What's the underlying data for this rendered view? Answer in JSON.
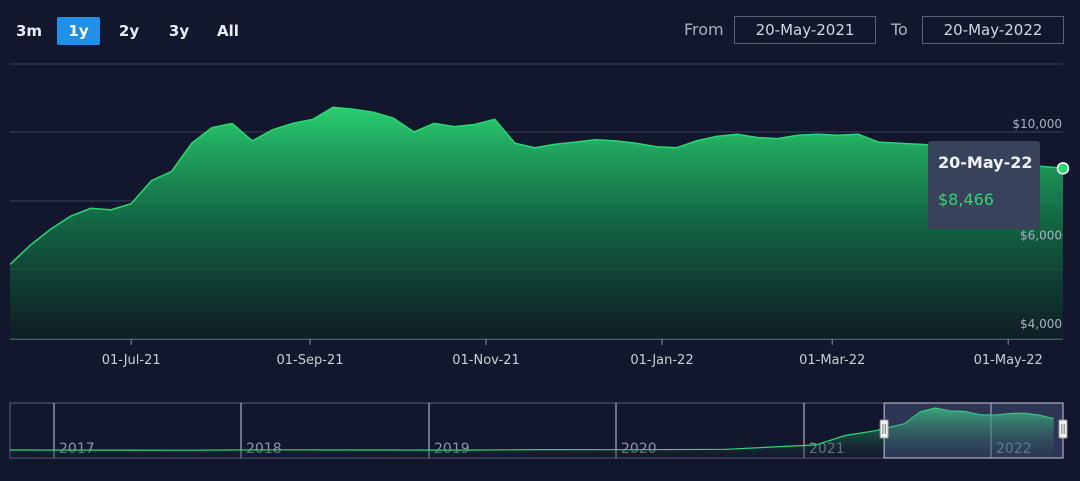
{
  "range_selector": {
    "buttons": [
      "3m",
      "1y",
      "2y",
      "3y",
      "All"
    ],
    "active": "1y"
  },
  "date_range": {
    "from_label": "From",
    "from_value": "20-May-2021",
    "to_label": "To",
    "to_value": "20-May-2022"
  },
  "tooltip": {
    "date": "20-May-22",
    "value": "$8,466"
  },
  "colors": {
    "background": "#13172e",
    "line": "#2bd873",
    "accent": "#1f8fe8"
  },
  "chart_data": [
    {
      "type": "area",
      "title": "",
      "xlabel": "",
      "ylabel": "",
      "x_tick_labels": [
        "01-Jul-21",
        "01-Sep-21",
        "01-Nov-21",
        "01-Jan-22",
        "01-Mar-22",
        "01-May-22"
      ],
      "y_tick_labels": [
        "$4,000",
        "$6,000",
        "$10,000"
      ],
      "ylim": [
        4000,
        12000
      ],
      "grid": true,
      "x": [
        "2021-05-20",
        "2021-05-27",
        "2021-06-03",
        "2021-06-10",
        "2021-06-17",
        "2021-06-24",
        "2021-07-01",
        "2021-07-08",
        "2021-07-15",
        "2021-07-22",
        "2021-07-29",
        "2021-08-05",
        "2021-08-12",
        "2021-08-19",
        "2021-08-26",
        "2021-09-02",
        "2021-09-09",
        "2021-09-16",
        "2021-09-23",
        "2021-09-30",
        "2021-10-07",
        "2021-10-14",
        "2021-10-21",
        "2021-10-28",
        "2021-11-04",
        "2021-11-11",
        "2021-11-18",
        "2021-11-25",
        "2021-12-02",
        "2021-12-09",
        "2021-12-16",
        "2021-12-23",
        "2021-12-30",
        "2022-01-06",
        "2022-01-13",
        "2022-01-20",
        "2022-01-27",
        "2022-02-03",
        "2022-02-10",
        "2022-02-17",
        "2022-02-24",
        "2022-03-03",
        "2022-03-10",
        "2022-03-17",
        "2022-03-24",
        "2022-03-31",
        "2022-04-07",
        "2022-04-14",
        "2022-04-21",
        "2022-04-28",
        "2022-05-05",
        "2022-05-12",
        "2022-05-20"
      ],
      "values": [
        5450,
        5950,
        6400,
        6800,
        7050,
        7000,
        7200,
        8000,
        8350,
        9500,
        10200,
        10400,
        9600,
        10100,
        10400,
        10600,
        11200,
        11100,
        10950,
        10650,
        10000,
        10400,
        10250,
        10350,
        10600,
        9500,
        9300,
        9450,
        9550,
        9650,
        9600,
        9500,
        9350,
        9300,
        9600,
        9800,
        9900,
        9750,
        9700,
        9850,
        9900,
        9850,
        9900,
        9550,
        9500,
        9450,
        9400,
        9250,
        9000,
        8800,
        8650,
        8550,
        8466
      ],
      "y_scale": "log"
    },
    {
      "type": "area",
      "title": "",
      "xlabel": "",
      "ylabel": "",
      "x_tick_labels": [
        "2017",
        "2018",
        "2019",
        "2020",
        "2021",
        "2022"
      ],
      "x": [
        "2016-07",
        "2017-01",
        "2017-07",
        "2018-01",
        "2018-07",
        "2019-01",
        "2019-07",
        "2020-01",
        "2020-07",
        "2021-01",
        "2021-03",
        "2021-05",
        "2021-07",
        "2021-08",
        "2021-09",
        "2021-10",
        "2021-11",
        "2021-12",
        "2022-01",
        "2022-02",
        "2022-03",
        "2022-04",
        "2022-05"
      ],
      "values": [
        520,
        480,
        470,
        560,
        500,
        480,
        620,
        590,
        700,
        1800,
        4200,
        5400,
        7200,
        10200,
        11200,
        10500,
        10300,
        9500,
        9400,
        9800,
        9900,
        9400,
        8466
      ],
      "selection": {
        "from": "2021-05-20",
        "to": "2022-05-20"
      }
    }
  ]
}
